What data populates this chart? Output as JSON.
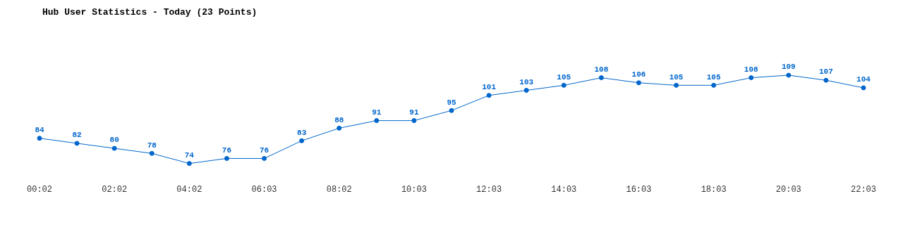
{
  "chart_data": {
    "type": "line",
    "title": "Hub User Statistics - Today (23 Points)",
    "categories": [
      "00:02",
      null,
      "02:02",
      null,
      "04:02",
      null,
      "06:03",
      null,
      "08:02",
      null,
      "10:03",
      null,
      "12:03",
      null,
      "14:03",
      null,
      "16:03",
      null,
      "18:03",
      null,
      "20:03",
      null,
      "22:03"
    ],
    "series": [
      {
        "color": "#0066cc",
        "values": [
          84,
          82,
          80,
          78,
          74,
          76,
          76,
          83,
          88,
          91,
          91,
          95,
          101,
          103,
          105,
          108,
          106,
          105,
          105,
          108,
          109,
          107,
          104
        ]
      }
    ],
    "data_labels": true,
    "grid": false,
    "legend": false,
    "marker": "circle",
    "line_style": "solid"
  }
}
